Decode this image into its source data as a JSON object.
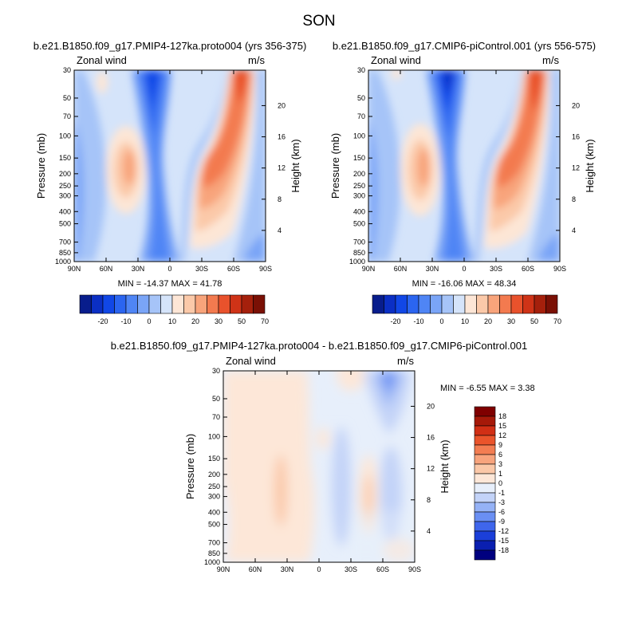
{
  "figure": {
    "title": "SON"
  },
  "colors": {
    "wind_levels": [
      "#081d8c",
      "#0b2fc4",
      "#1147e6",
      "#2b65f0",
      "#4f85f5",
      "#7aa5f7",
      "#a6c4f8",
      "#d5e4fa",
      "#fde6d6",
      "#fbc9a9",
      "#f8a47b",
      "#f37a4f",
      "#e9522c",
      "#cf3317",
      "#a5200c",
      "#7a1005"
    ],
    "diff_levels": [
      "#00007f",
      "#0a1fb0",
      "#1b3fd9",
      "#3f66ec",
      "#6a8ff3",
      "#95b2f6",
      "#c3d3f8",
      "#e7effb",
      "#fde7d8",
      "#fbc8a8",
      "#f8a47d",
      "#f37d52",
      "#ea542b",
      "#d12f15",
      "#a61909",
      "#7f0000"
    ]
  },
  "chart_data": [
    {
      "type": "heatmap",
      "title": "b.e21.B1850.f09_g17.PMIP4-127ka.proto004 (yrs 356-375)",
      "left_label": "Zonal wind",
      "right_label": "m/s",
      "ylabel": "Pressure (mb)",
      "ylabel_right": "Height (km)",
      "x_ticks": [
        "90N",
        "60N",
        "30N",
        "0",
        "30S",
        "60S",
        "90S"
      ],
      "y_ticks": [
        "30",
        "50",
        "70",
        "100",
        "150",
        "200",
        "250",
        "300",
        "400",
        "500",
        "700",
        "850",
        "1000"
      ],
      "height_ticks": [
        "20",
        "16",
        "12",
        "8",
        "4"
      ],
      "min": -14.37,
      "max": 41.78,
      "min_label": "MIN = -14.37",
      "max_label": "MAX = 41.78",
      "ylim": [
        1000,
        30
      ],
      "colorbar_labels": [
        "-20",
        "-10",
        "0",
        "10",
        "20",
        "30",
        "50",
        "70"
      ],
      "features": [
        {
          "lat": 0,
          "p": 500,
          "value": -8
        },
        {
          "lat": 10,
          "p": 40,
          "value": -14
        },
        {
          "lat": 40,
          "p": 200,
          "value": 18
        },
        {
          "lat": -45,
          "p": 200,
          "value": 35
        },
        {
          "lat": -55,
          "p": 40,
          "value": 41
        }
      ]
    },
    {
      "type": "heatmap",
      "title": "b.e21.B1850.f09_g17.CMIP6-piControl.001 (yrs 556-575)",
      "left_label": "Zonal wind",
      "right_label": "m/s",
      "ylabel": "Pressure (mb)",
      "ylabel_right": "Height (km)",
      "x_ticks": [
        "90N",
        "60N",
        "30N",
        "0",
        "30S",
        "60S",
        "90S"
      ],
      "y_ticks": [
        "30",
        "50",
        "70",
        "100",
        "150",
        "200",
        "250",
        "300",
        "400",
        "500",
        "700",
        "850",
        "1000"
      ],
      "height_ticks": [
        "20",
        "16",
        "12",
        "8",
        "4"
      ],
      "min": -16.06,
      "max": 48.34,
      "min_label": "MIN = -16.06",
      "max_label": "MAX = 48.34",
      "ylim": [
        1000,
        30
      ],
      "colorbar_labels": [
        "-20",
        "-10",
        "0",
        "10",
        "20",
        "30",
        "50",
        "70"
      ],
      "features": [
        {
          "lat": 0,
          "p": 500,
          "value": -9
        },
        {
          "lat": 10,
          "p": 40,
          "value": -16
        },
        {
          "lat": 40,
          "p": 200,
          "value": 20
        },
        {
          "lat": -45,
          "p": 200,
          "value": 38
        },
        {
          "lat": -55,
          "p": 40,
          "value": 48
        }
      ]
    },
    {
      "type": "heatmap",
      "title": "b.e21.B1850.f09_g17.PMIP4-127ka.proto004 - b.e21.B1850.f09_g17.CMIP6-piControl.001",
      "left_label": "Zonal wind",
      "right_label": "m/s",
      "ylabel": "Pressure (mb)",
      "ylabel_right": "Height (km)",
      "x_ticks": [
        "90N",
        "60N",
        "30N",
        "0",
        "30S",
        "60S",
        "90S"
      ],
      "y_ticks": [
        "30",
        "50",
        "70",
        "100",
        "150",
        "200",
        "250",
        "300",
        "400",
        "500",
        "700",
        "850",
        "1000"
      ],
      "height_ticks": [
        "20",
        "16",
        "12",
        "8",
        "4"
      ],
      "min": -6.55,
      "max": 3.38,
      "min_label": "MIN =  -6.55",
      "max_label": "MAX =    3.38",
      "ylim": [
        1000,
        30
      ],
      "colorbar_labels": [
        "18",
        "15",
        "12",
        "9",
        "6",
        "3",
        "1",
        "0",
        "-1",
        "-3",
        "-6",
        "-9",
        "-12",
        "-15",
        "-18"
      ],
      "features": [
        {
          "lat": 60,
          "p": 100,
          "value": 1
        },
        {
          "lat": -60,
          "p": 40,
          "value": -6.5
        },
        {
          "lat": 30,
          "p": 250,
          "value": 3
        },
        {
          "lat": -55,
          "p": 250,
          "value": 3
        }
      ]
    }
  ]
}
